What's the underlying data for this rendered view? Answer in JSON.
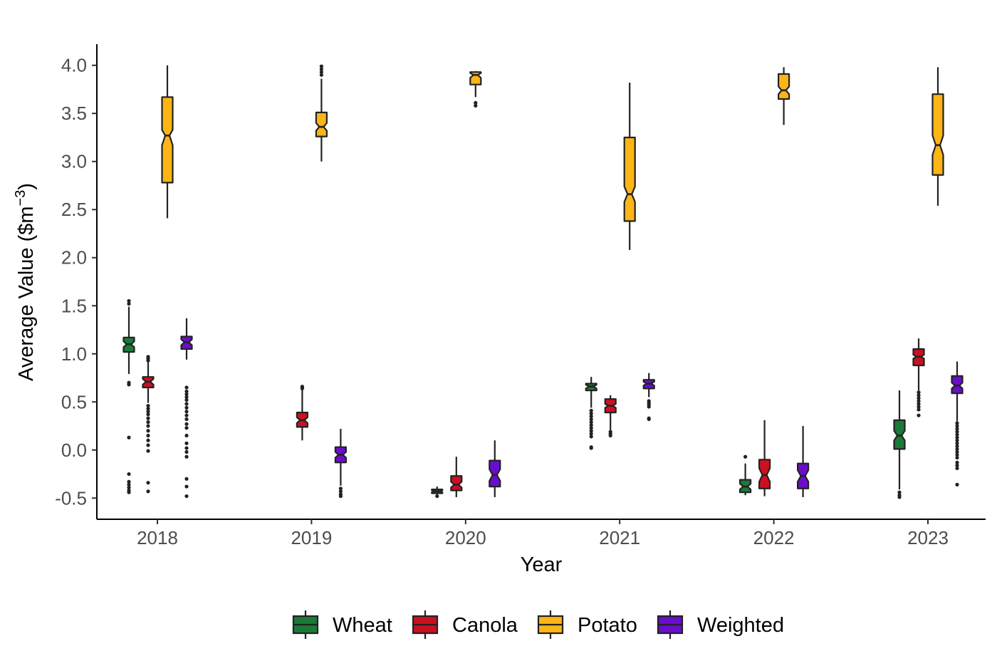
{
  "chart_data": {
    "type": "boxplot",
    "notched": true,
    "xlabel": "Year",
    "ylabel": "Average Value ($m",
    "ylabel_superscript": "−3",
    "ylabel_close": ")",
    "categories": [
      "2018",
      "2019",
      "2020",
      "2021",
      "2022",
      "2023"
    ],
    "y_ticks": [
      {
        "value": -0.5,
        "label": "-0.5"
      },
      {
        "value": 0.0,
        "label": "0.0"
      },
      {
        "value": 0.5,
        "label": "0.5"
      },
      {
        "value": 1.0,
        "label": "1.0"
      },
      {
        "value": 1.5,
        "label": "1.5"
      },
      {
        "value": 2.0,
        "label": "2.0"
      },
      {
        "value": 2.5,
        "label": "2.5"
      },
      {
        "value": 3.0,
        "label": "3.0"
      },
      {
        "value": 3.5,
        "label": "3.5"
      },
      {
        "value": 4.0,
        "label": "4.0"
      }
    ],
    "ylim": [
      -0.72,
      4.22
    ],
    "grid": false,
    "legend_position": "bottom",
    "series": [
      {
        "name": "Wheat",
        "color": "#1a7a38",
        "boxes": [
          {
            "year": "2018",
            "min": 0.79,
            "q1": 1.02,
            "median": 1.1,
            "q3": 1.17,
            "max": 1.49,
            "notch_lo": 1.07,
            "notch_hi": 1.13,
            "outliers": [
              1.55,
              1.52,
              0.7,
              0.68,
              0.13,
              -0.25,
              -0.33,
              -0.36,
              -0.39,
              -0.42,
              -0.44
            ]
          },
          {
            "year": "2019",
            "present": false
          },
          {
            "year": "2020",
            "min": -0.47,
            "q1": -0.45,
            "median": -0.43,
            "q3": -0.41,
            "max": -0.38,
            "notch_lo": -0.44,
            "notch_hi": -0.42,
            "outliers": [
              -0.48
            ]
          },
          {
            "year": "2021",
            "min": 0.44,
            "q1": 0.62,
            "median": 0.66,
            "q3": 0.69,
            "max": 0.76,
            "notch_lo": 0.64,
            "notch_hi": 0.68,
            "outliers": [
              0.41,
              0.38,
              0.35,
              0.32,
              0.29,
              0.26,
              0.23,
              0.2,
              0.17,
              0.14,
              0.03,
              0.02
            ]
          },
          {
            "year": "2022",
            "min": -0.47,
            "q1": -0.44,
            "median": -0.38,
            "q3": -0.31,
            "max": -0.14,
            "notch_lo": -0.41,
            "notch_hi": -0.35,
            "outliers": [
              -0.07
            ]
          },
          {
            "year": "2023",
            "min": -0.41,
            "q1": 0.01,
            "median": 0.15,
            "q3": 0.31,
            "max": 0.62,
            "notch_lo": 0.1,
            "notch_hi": 0.2,
            "outliers": [
              -0.44,
              -0.47,
              -0.49
            ]
          }
        ]
      },
      {
        "name": "Canola",
        "color": "#cc1020",
        "boxes": [
          {
            "year": "2018",
            "min": 0.49,
            "q1": 0.65,
            "median": 0.71,
            "q3": 0.76,
            "max": 0.94,
            "notch_lo": 0.68,
            "notch_hi": 0.74,
            "outliers": [
              0.97,
              0.95,
              0.93,
              0.46,
              0.43,
              0.4,
              0.37,
              0.33,
              0.29,
              0.25,
              0.2,
              0.15,
              0.1,
              0.05,
              -0.01,
              -0.34,
              -0.43
            ]
          },
          {
            "year": "2019",
            "min": 0.1,
            "q1": 0.24,
            "median": 0.31,
            "q3": 0.39,
            "max": 0.63,
            "notch_lo": 0.28,
            "notch_hi": 0.34,
            "outliers": [
              0.64,
              0.65,
              0.66
            ]
          },
          {
            "year": "2020",
            "min": -0.49,
            "q1": -0.42,
            "median": -0.36,
            "q3": -0.27,
            "max": -0.07,
            "notch_lo": -0.39,
            "notch_hi": -0.33,
            "outliers": []
          },
          {
            "year": "2021",
            "min": 0.21,
            "q1": 0.39,
            "median": 0.46,
            "q3": 0.53,
            "max": 0.57,
            "notch_lo": 0.44,
            "notch_hi": 0.48,
            "outliers": [
              0.19,
              0.17,
              0.15
            ]
          },
          {
            "year": "2022",
            "min": -0.48,
            "q1": -0.4,
            "median": -0.26,
            "q3": -0.1,
            "max": 0.31,
            "notch_lo": -0.33,
            "notch_hi": -0.19,
            "outliers": []
          },
          {
            "year": "2023",
            "min": 0.62,
            "q1": 0.88,
            "median": 0.97,
            "q3": 1.05,
            "max": 1.16,
            "notch_lo": 0.95,
            "notch_hi": 0.99,
            "outliers": [
              0.6,
              0.57,
              0.54,
              0.51,
              0.48,
              0.45,
              0.42,
              0.36
            ]
          }
        ]
      },
      {
        "name": "Potato",
        "color": "#fdb515",
        "boxes": [
          {
            "year": "2018",
            "min": 2.41,
            "q1": 2.78,
            "median": 3.27,
            "q3": 3.67,
            "max": 4.0,
            "notch_lo": 3.17,
            "notch_hi": 3.33,
            "outliers": []
          },
          {
            "year": "2019",
            "min": 3.0,
            "q1": 3.26,
            "median": 3.36,
            "q3": 3.51,
            "max": 3.86,
            "notch_lo": 3.32,
            "notch_hi": 3.4,
            "outliers": [
              3.9,
              3.93,
              3.96,
              3.99
            ]
          },
          {
            "year": "2020",
            "min": 3.67,
            "q1": 3.8,
            "median": 3.9,
            "q3": 3.93,
            "max": 3.94,
            "notch_lo": 3.87,
            "notch_hi": 3.92,
            "outliers": [
              3.61,
              3.58
            ]
          },
          {
            "year": "2021",
            "min": 2.08,
            "q1": 2.38,
            "median": 2.66,
            "q3": 3.25,
            "max": 3.82,
            "notch_lo": 2.58,
            "notch_hi": 2.74,
            "outliers": []
          },
          {
            "year": "2022",
            "min": 3.38,
            "q1": 3.65,
            "median": 3.74,
            "q3": 3.91,
            "max": 3.98,
            "notch_lo": 3.7,
            "notch_hi": 3.78,
            "outliers": []
          },
          {
            "year": "2023",
            "min": 2.54,
            "q1": 2.86,
            "median": 3.17,
            "q3": 3.7,
            "max": 3.98,
            "notch_lo": 3.07,
            "notch_hi": 3.27,
            "outliers": []
          }
        ]
      },
      {
        "name": "Weighted",
        "color": "#6a0dcc",
        "boxes": [
          {
            "year": "2018",
            "min": 0.94,
            "q1": 1.05,
            "median": 1.12,
            "q3": 1.18,
            "max": 1.37,
            "notch_lo": 1.09,
            "notch_hi": 1.15,
            "outliers": [
              0.65,
              0.61,
              0.58,
              0.55,
              0.52,
              0.48,
              0.44,
              0.4,
              0.36,
              0.32,
              0.27,
              0.23,
              0.15,
              0.07,
              0.02,
              -0.02,
              -0.07,
              -0.3,
              -0.38,
              -0.48
            ]
          },
          {
            "year": "2019",
            "min": -0.37,
            "q1": -0.13,
            "median": -0.05,
            "q3": 0.03,
            "max": 0.22,
            "notch_lo": -0.08,
            "notch_hi": -0.02,
            "outliers": [
              -0.4,
              -0.43,
              -0.46,
              -0.48
            ]
          },
          {
            "year": "2020",
            "min": -0.49,
            "q1": -0.38,
            "median": -0.26,
            "q3": -0.11,
            "max": 0.1,
            "notch_lo": -0.32,
            "notch_hi": -0.2,
            "outliers": []
          },
          {
            "year": "2021",
            "min": 0.55,
            "q1": 0.64,
            "median": 0.69,
            "q3": 0.73,
            "max": 0.8,
            "notch_lo": 0.67,
            "notch_hi": 0.71,
            "outliers": [
              0.51,
              0.49,
              0.47,
              0.45,
              0.33,
              0.32
            ]
          },
          {
            "year": "2022",
            "min": -0.49,
            "q1": -0.4,
            "median": -0.27,
            "q3": -0.14,
            "max": 0.25,
            "notch_lo": -0.33,
            "notch_hi": -0.21,
            "outliers": []
          },
          {
            "year": "2023",
            "min": 0.3,
            "q1": 0.59,
            "median": 0.67,
            "q3": 0.77,
            "max": 0.92,
            "notch_lo": 0.64,
            "notch_hi": 0.7,
            "outliers": [
              0.28,
              0.25,
              0.22,
              0.19,
              0.16,
              0.13,
              0.1,
              0.07,
              0.04,
              0.01,
              -0.02,
              -0.05,
              -0.08,
              -0.13,
              -0.16,
              -0.19,
              -0.36
            ]
          }
        ]
      }
    ]
  }
}
